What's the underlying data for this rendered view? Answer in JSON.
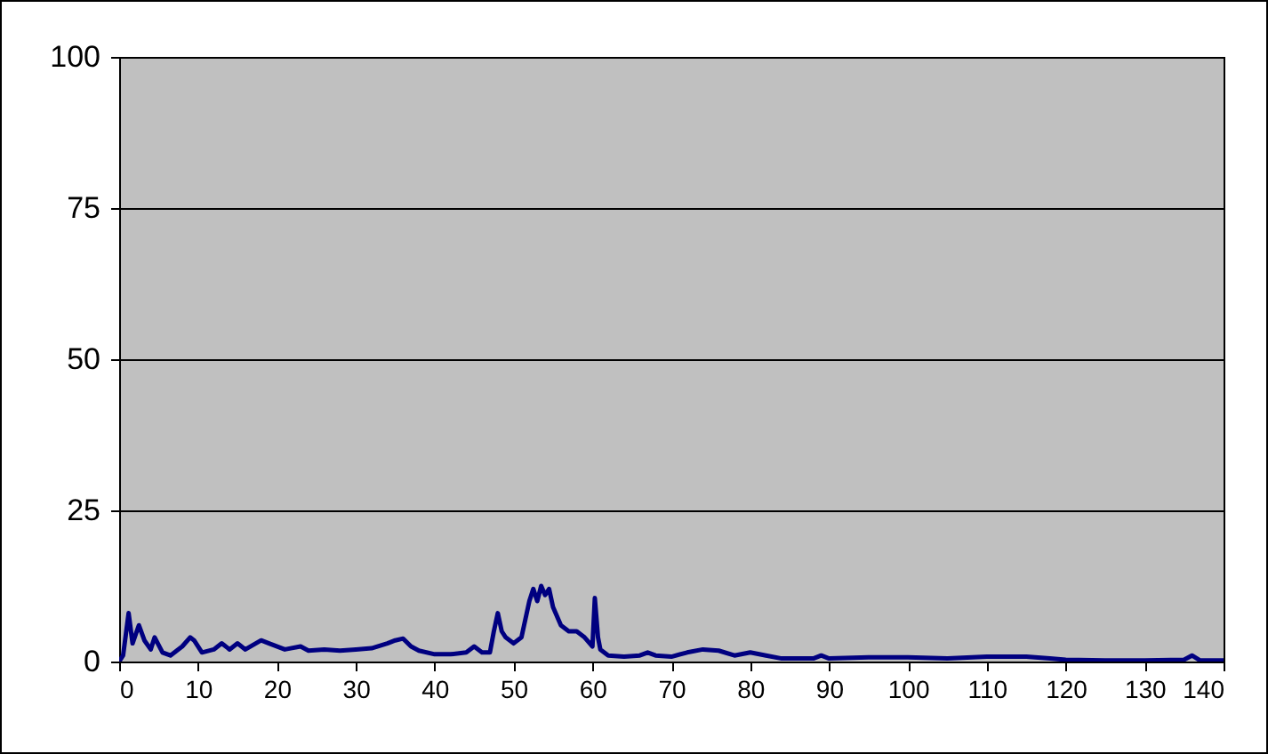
{
  "chart_data": {
    "type": "line",
    "x": [
      0,
      0.5,
      1.2,
      1.7,
      2.5,
      3.2,
      4,
      4.5,
      5.5,
      6.5,
      8,
      9,
      9.5,
      10.5,
      12,
      13,
      14,
      15,
      16,
      18,
      19,
      21,
      23,
      24,
      26,
      28,
      30,
      32,
      34,
      35,
      36,
      37,
      38,
      40,
      42,
      44,
      45,
      46,
      47,
      47.5,
      48,
      48.5,
      49,
      50,
      51,
      52,
      52.5,
      53,
      53.5,
      54,
      54.5,
      55,
      56,
      57,
      58,
      59,
      60,
      60.3,
      60.7,
      61,
      62,
      64,
      66,
      67,
      68,
      70,
      72,
      74,
      76,
      78,
      80,
      82,
      84,
      86,
      88,
      89,
      90,
      95,
      100,
      105,
      110,
      115,
      118,
      120,
      125,
      130,
      135,
      136,
      137,
      140
    ],
    "series": [
      {
        "color": "#000080",
        "values": [
          0,
          1,
          8,
          3,
          6,
          3.5,
          2,
          4,
          1.5,
          1,
          2.5,
          4,
          3.5,
          1.5,
          2,
          3,
          2,
          3,
          2,
          3.5,
          3,
          2,
          2.5,
          1.8,
          2,
          1.8,
          2,
          2.2,
          3,
          3.5,
          3.8,
          2.5,
          1.8,
          1.2,
          1.2,
          1.5,
          2.5,
          1.5,
          1.5,
          5,
          8,
          5,
          4,
          3,
          4,
          10,
          12,
          10,
          12.5,
          11,
          12,
          9,
          6,
          5,
          5,
          4,
          2.5,
          10.5,
          4,
          2,
          1,
          0.8,
          1,
          1.5,
          1,
          0.8,
          1.5,
          2,
          1.8,
          1,
          1.5,
          1,
          0.5,
          0.5,
          0.5,
          1,
          0.5,
          0.7,
          0.7,
          0.5,
          0.8,
          0.8,
          0.5,
          0.3,
          0.2,
          0.2,
          0.3,
          1,
          0.2,
          0.2
        ]
      }
    ],
    "xlim": [
      0,
      140
    ],
    "xticks": [
      0,
      10,
      20,
      30,
      40,
      50,
      60,
      70,
      80,
      90,
      100,
      110,
      120,
      130,
      140
    ],
    "ylim": [
      0,
      100
    ],
    "yticks": [
      0,
      25,
      50,
      75,
      100
    ],
    "grid": "y",
    "marker": "none",
    "line_style": "solid"
  }
}
